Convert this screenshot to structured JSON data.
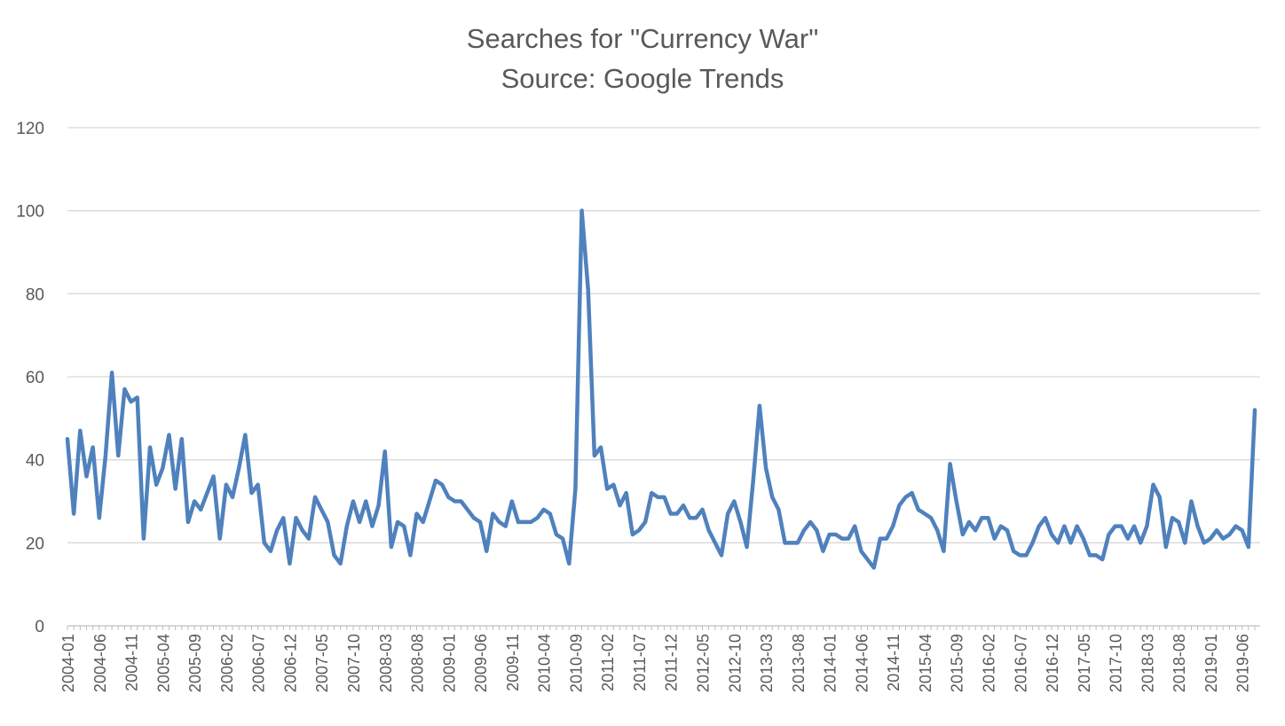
{
  "chart_data": {
    "type": "line",
    "title": "Searches for \"Currency War\"",
    "subtitle": "Source: Google Trends",
    "xlabel": "",
    "ylabel": "",
    "ylim": [
      0,
      120
    ],
    "yticks": [
      0,
      20,
      40,
      60,
      80,
      100,
      120
    ],
    "grid": true,
    "legend": "none",
    "line_color": "#4f81bd",
    "x_start": "2004-01",
    "x_ticks": [
      "2004-01",
      "2004-06",
      "2004-11",
      "2005-04",
      "2005-09",
      "2006-02",
      "2006-07",
      "2006-12",
      "2007-05",
      "2007-10",
      "2008-03",
      "2008-08",
      "2009-01",
      "2009-06",
      "2009-11",
      "2010-04",
      "2010-09",
      "2011-02",
      "2011-07",
      "2011-12",
      "2012-05",
      "2012-10",
      "2013-03",
      "2013-08",
      "2014-01",
      "2014-06",
      "2014-11",
      "2015-04",
      "2015-09",
      "2016-02",
      "2016-07",
      "2016-12",
      "2017-05",
      "2017-10",
      "2018-03",
      "2018-08",
      "2019-01",
      "2019-06"
    ],
    "series": [
      {
        "values": [
          45,
          27,
          47,
          36,
          43,
          26,
          41,
          61,
          41,
          57,
          54,
          55,
          21,
          43,
          34,
          38,
          46,
          33,
          45,
          25,
          30,
          28,
          32,
          36,
          21,
          34,
          31,
          38,
          46,
          32,
          34,
          20,
          18,
          23,
          26,
          15,
          26,
          23,
          21,
          31,
          28,
          25,
          17,
          15,
          24,
          30,
          25,
          30,
          24,
          29,
          42,
          19,
          25,
          24,
          17,
          27,
          25,
          30,
          35,
          34,
          31,
          30,
          30,
          28,
          26,
          25,
          18,
          27,
          25,
          24,
          30,
          25,
          25,
          25,
          26,
          28,
          27,
          22,
          21,
          15,
          33,
          100,
          81,
          41,
          43,
          33,
          34,
          29,
          32,
          22,
          23,
          25,
          32,
          31,
          31,
          27,
          27,
          29,
          26,
          26,
          28,
          23,
          20,
          17,
          27,
          30,
          25,
          19,
          35,
          53,
          38,
          31,
          28,
          20,
          20,
          20,
          23,
          25,
          23,
          18,
          22,
          22,
          21,
          21,
          24,
          18,
          16,
          14,
          21,
          21,
          24,
          29,
          31,
          32,
          28,
          27,
          26,
          23,
          18,
          39,
          30,
          22,
          25,
          23,
          26,
          26,
          21,
          24,
          23,
          18,
          17,
          17,
          20,
          24,
          26,
          22,
          20,
          24,
          20,
          24,
          21,
          17,
          17,
          16,
          22,
          24,
          24,
          21,
          24,
          20,
          24,
          34,
          31,
          19,
          26,
          25,
          20,
          30,
          24,
          20,
          21,
          23,
          21,
          22,
          24,
          23,
          19,
          52
        ]
      }
    ]
  }
}
